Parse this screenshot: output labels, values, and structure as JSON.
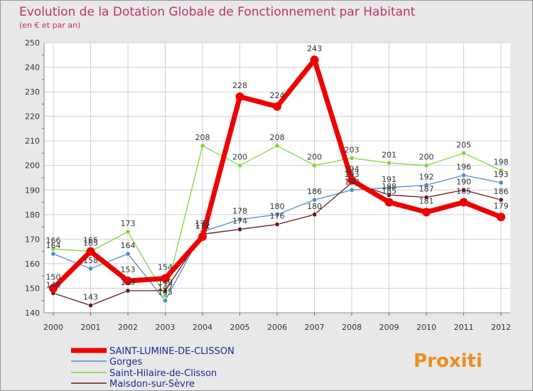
{
  "chart_data": {
    "type": "line",
    "title": "Evolution de la Dotation Globale de Fonctionnement par Habitant",
    "subtitle": "(en € et par an)",
    "xlabel": "",
    "ylabel": "",
    "ylim": [
      140,
      250
    ],
    "yticks": [
      140,
      150,
      160,
      170,
      180,
      190,
      200,
      210,
      220,
      230,
      240,
      250
    ],
    "categories": [
      "2000",
      "2001",
      "2002",
      "2003",
      "2004",
      "2005",
      "2006",
      "2007",
      "2008",
      "2009",
      "2010",
      "2011",
      "2012"
    ],
    "grid": true,
    "legend_position": "bottom-left",
    "series": [
      {
        "name": "Saint-Hilaire-de-Clisson",
        "color": "#7fd63c",
        "values": [
          166,
          165,
          173,
          147,
          208,
          200,
          208,
          200,
          203,
          201,
          200,
          205,
          198
        ]
      },
      {
        "name": "Gorges",
        "color": "#4a8fd0",
        "values": [
          164,
          158,
          164,
          145,
          173,
          178,
          180,
          186,
          190,
          191,
          192,
          196,
          193
        ]
      },
      {
        "name": "Maisdon-sur-Sèvre",
        "color": "#6b1a1a",
        "values": [
          148,
          143,
          149,
          149,
          172,
          174,
          176,
          180,
          193,
          188,
          187,
          190,
          186
        ]
      },
      {
        "name": "SAINT-LUMINE-DE-CLISSON",
        "color": "#ee0000",
        "values": [
          150,
          165,
          153,
          154,
          171,
          228,
          224,
          243,
          194,
          185,
          181,
          185,
          179
        ]
      }
    ]
  },
  "legend": [
    {
      "name": "SAINT-LUMINE-DE-CLISSON",
      "color": "#ee0000"
    },
    {
      "name": "Gorges",
      "color": "#4a8fd0"
    },
    {
      "name": "Saint-Hilaire-de-Clisson",
      "color": "#7fd63c"
    },
    {
      "name": "Maisdon-sur-Sèvre",
      "color": "#6b1a1a"
    }
  ],
  "logo": {
    "text": "Proxiti"
  }
}
